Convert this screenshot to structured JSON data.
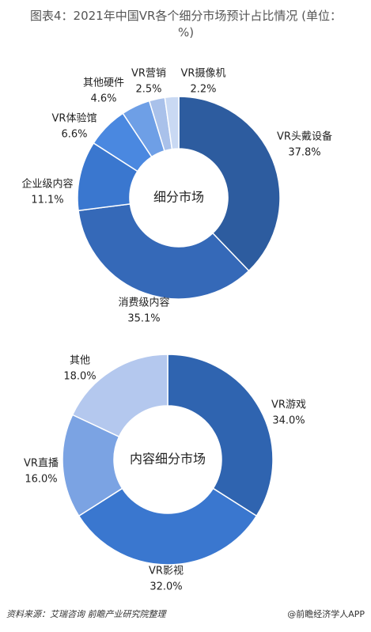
{
  "header": {
    "title": "图表4：2021年中国VR各个细分市场预计占比情况 (单位：%)"
  },
  "chart_data": [
    {
      "type": "pie",
      "center_label": "细分市场",
      "categories": [
        "VR头戴设备",
        "消费级内容",
        "企业级内容",
        "VR体验馆",
        "其他硬件",
        "VR营销",
        "VR摄像机"
      ],
      "values": [
        37.8,
        35.1,
        11.1,
        6.6,
        4.6,
        2.5,
        2.2
      ],
      "value_labels": [
        "37.8%",
        "35.1%",
        "11.1%",
        "6.6%",
        "4.6%",
        "2.5%",
        "2.2%"
      ],
      "colors": [
        "#2d5c9f",
        "#3569b8",
        "#3a77cf",
        "#4a88e0",
        "#6e9fe6",
        "#a9c1ea",
        "#c9d9f3"
      ]
    },
    {
      "type": "pie",
      "center_label": "内容细分市场",
      "categories": [
        "VR游戏",
        "VR影视",
        "VR直播",
        "其他"
      ],
      "values": [
        34.0,
        32.0,
        16.0,
        18.0
      ],
      "value_labels": [
        "34.0%",
        "32.0%",
        "16.0%",
        "18.0%"
      ],
      "colors": [
        "#2f64b0",
        "#3a77cf",
        "#7ba3e3",
        "#b4c8ee"
      ]
    }
  ],
  "footer": {
    "source": "资料来源：艾瑞咨询 前瞻产业研究院整理",
    "brand": "@前瞻经济学人APP"
  }
}
